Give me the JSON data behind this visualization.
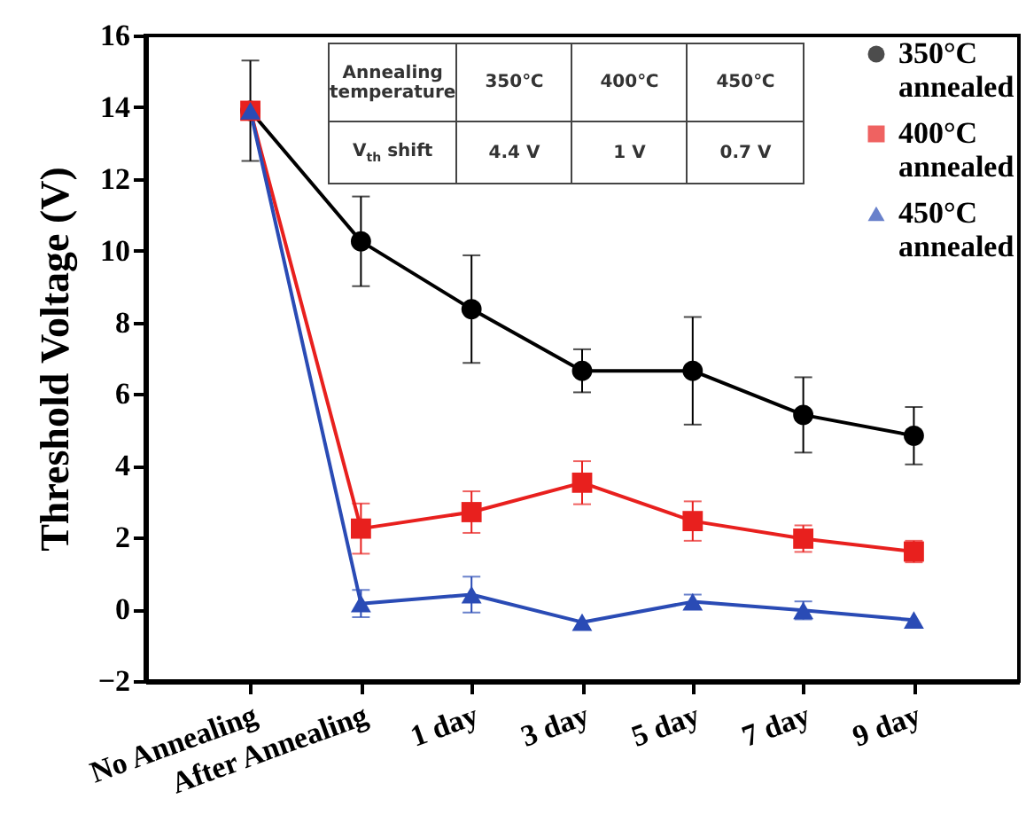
{
  "chart_data": {
    "type": "line",
    "ylabel": "Threshold Voltage (V)",
    "categories": [
      "No Annealing",
      "After Annealing",
      "1 day",
      "3 day",
      "5 day",
      "7 day",
      "9 day"
    ],
    "series": [
      {
        "name": "350°C annealed",
        "color": "#000000",
        "marker": "circle",
        "values": [
          13.9,
          10.26,
          8.37,
          6.65,
          6.65,
          5.42,
          4.84
        ],
        "errors": [
          1.4,
          1.25,
          1.5,
          0.6,
          1.5,
          1.05,
          0.8
        ]
      },
      {
        "name": "400°C annealed",
        "color": "#e8201e",
        "marker": "square",
        "values": [
          13.9,
          2.25,
          2.71,
          3.53,
          2.46,
          1.97,
          1.61
        ],
        "errors": [
          null,
          0.7,
          0.58,
          0.6,
          0.55,
          0.37,
          0.3
        ]
      },
      {
        "name": "450°C annealed",
        "color": "#2a4bb5",
        "marker": "triangle",
        "values": [
          13.9,
          0.16,
          0.41,
          -0.36,
          0.21,
          -0.03,
          -0.3
        ],
        "errors": [
          null,
          0.38,
          0.5,
          null,
          0.2,
          0.25,
          null
        ]
      }
    ],
    "ylim": [
      -2,
      16
    ],
    "yticks": [
      -2,
      0,
      2,
      4,
      6,
      8,
      10,
      12,
      14,
      16
    ],
    "grid": false,
    "legend": "top right",
    "annotations": [
      "Annealing temperature",
      "350℃",
      "400℃",
      "450℃",
      "V$_{th}$ shift",
      "4.4 V",
      "1 V",
      "0.7 V"
    ]
  }
}
